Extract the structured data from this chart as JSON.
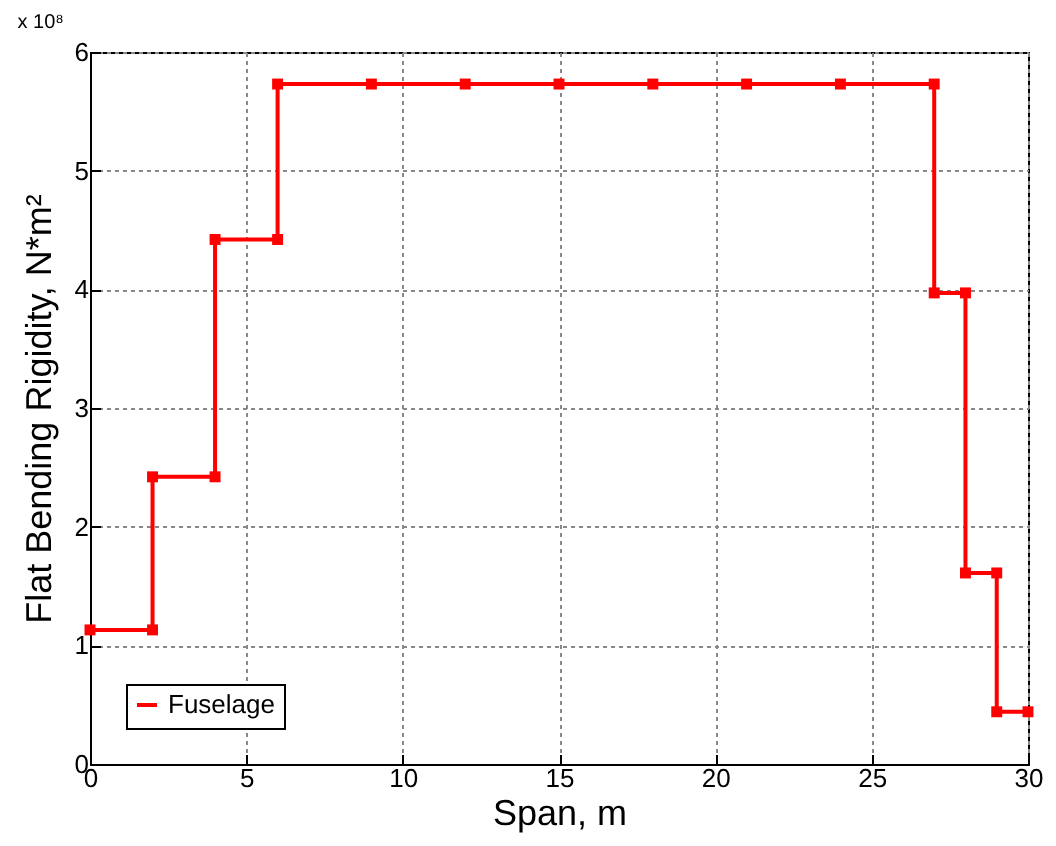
{
  "chart_data": {
    "type": "line",
    "xlabel": "Span, m",
    "ylabel": "Flat Bending Rigidity, N*m²",
    "annotations": [
      "x 10⁸"
    ],
    "x": [
      0,
      2,
      2,
      4,
      4,
      6,
      6,
      9,
      12,
      15,
      18,
      21,
      24,
      27,
      27,
      28,
      28,
      29,
      29,
      30
    ],
    "series": [
      {
        "name": "Fuselage",
        "color": "#ff0000",
        "values": [
          1.13,
          1.13,
          2.42,
          2.42,
          4.42,
          4.42,
          5.73,
          5.73,
          5.73,
          5.73,
          5.73,
          5.73,
          5.73,
          5.73,
          3.97,
          3.97,
          1.61,
          1.61,
          0.44,
          0.44
        ]
      }
    ],
    "xlim": [
      0,
      30
    ],
    "xticks": [
      0,
      5,
      10,
      15,
      20,
      25,
      30
    ],
    "ylim": [
      0,
      6
    ],
    "yticks": [
      0,
      1,
      2,
      3,
      4,
      5,
      6
    ],
    "grid": true,
    "legend": "bottom left",
    "marker": "square",
    "line_style": "solid"
  }
}
